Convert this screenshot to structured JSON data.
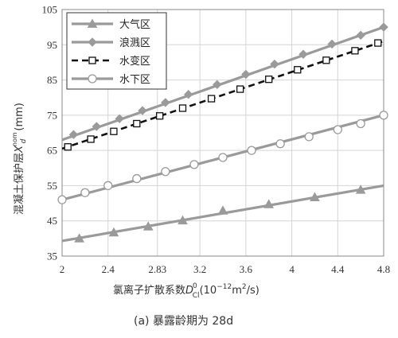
{
  "chart_data": {
    "type": "line",
    "caption": "(a) 暴露龄期为 28d",
    "xlabel": {
      "prefix": "氯离子扩散系数",
      "symbol": "D",
      "sub": "Cl",
      "sup": "0",
      "unit_pre": "(10",
      "unit_exp": "−12",
      "unit_mid": "m",
      "unit_exp2": "2",
      "unit_post": "/s)"
    },
    "ylabel": {
      "prefix": "混凝土保护层",
      "symbol": "X",
      "sub": "d",
      "sup": "nom",
      "unit": "(mm)"
    },
    "xlim": [
      2,
      4.8
    ],
    "ylim": [
      35,
      105
    ],
    "xticks": [
      "2",
      "2.4",
      "2.83",
      "3.2",
      "3.6",
      "4",
      "4.4",
      "4.8"
    ],
    "yticks": [
      "35",
      "45",
      "55",
      "65",
      "75",
      "85",
      "95",
      "105"
    ],
    "grid": true,
    "legend_position": "top-left",
    "series": [
      {
        "name": "大气区",
        "marker": "triangle",
        "color": "#9a9a9a",
        "dashed": false,
        "line": [
          [
            2,
            39.3
          ],
          [
            4.8,
            55
          ]
        ],
        "points": [
          [
            2.15,
            40
          ],
          [
            2.45,
            41.7
          ],
          [
            2.75,
            43.4
          ],
          [
            3.05,
            45.1
          ],
          [
            3.4,
            47.9
          ],
          [
            3.8,
            49.7
          ],
          [
            4.2,
            51.7
          ],
          [
            4.6,
            53.8
          ]
        ]
      },
      {
        "name": "浪溅区",
        "marker": "diamond",
        "color": "#9a9a9a",
        "dashed": false,
        "line": [
          [
            2,
            68
          ],
          [
            4.8,
            100
          ]
        ],
        "points": [
          [
            2.1,
            69.5
          ],
          [
            2.3,
            71.8
          ],
          [
            2.5,
            74
          ],
          [
            2.7,
            76.3
          ],
          [
            2.9,
            78.6
          ],
          [
            3.1,
            80.9
          ],
          [
            3.35,
            83.7
          ],
          [
            3.6,
            86.6
          ],
          [
            3.85,
            89.5
          ],
          [
            4.1,
            92.3
          ],
          [
            4.35,
            95.2
          ],
          [
            4.6,
            97.7
          ],
          [
            4.8,
            100
          ]
        ]
      },
      {
        "name": "水变区",
        "marker": "square",
        "color": "#111111",
        "dashed": true,
        "line": [
          [
            2,
            65.5
          ],
          [
            4.8,
            96
          ]
        ],
        "points": [
          [
            2.05,
            66
          ],
          [
            2.25,
            68.2
          ],
          [
            2.45,
            70.4
          ],
          [
            2.65,
            72.6
          ],
          [
            2.85,
            74.8
          ],
          [
            3.05,
            77
          ],
          [
            3.3,
            79.7
          ],
          [
            3.55,
            82.4
          ],
          [
            3.8,
            85.2
          ],
          [
            4.05,
            87.9
          ],
          [
            4.3,
            90.6
          ],
          [
            4.55,
            93.3
          ],
          [
            4.75,
            95.5
          ]
        ]
      },
      {
        "name": "水下区",
        "marker": "circle",
        "color": "#9a9a9a",
        "dashed": false,
        "line": [
          [
            2,
            51
          ],
          [
            4.8,
            75
          ]
        ],
        "points": [
          [
            2,
            51
          ],
          [
            2.2,
            53
          ],
          [
            2.4,
            55
          ],
          [
            2.65,
            57
          ],
          [
            2.9,
            59
          ],
          [
            3.15,
            61
          ],
          [
            3.4,
            63
          ],
          [
            3.65,
            65
          ],
          [
            3.9,
            66.9
          ],
          [
            4.15,
            68.9
          ],
          [
            4.4,
            70.9
          ],
          [
            4.6,
            72.6
          ],
          [
            4.8,
            75
          ]
        ]
      }
    ]
  }
}
